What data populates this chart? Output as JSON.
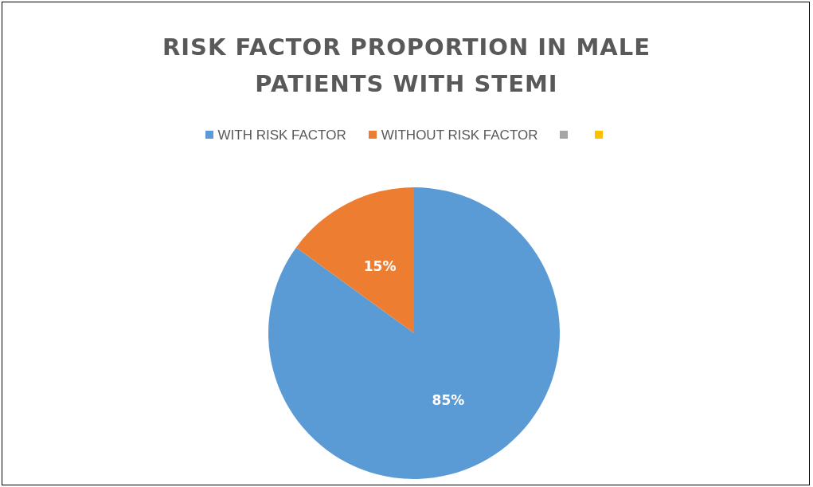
{
  "chart_data": {
    "type": "pie",
    "title": "RISK FACTOR PROPORTION IN MALE PATIENTS WITH STEMI",
    "categories": [
      "WITH RISK FACTOR",
      "WITHOUT RISK FACTOR",
      null,
      null
    ],
    "values": [
      85,
      15,
      0,
      0
    ],
    "colors": [
      "#5b9bd5",
      "#ed7d31",
      "#a5a5a5",
      "#ffc000"
    ],
    "value_labels": [
      "85%",
      "15%",
      null,
      null
    ],
    "legend": "top"
  }
}
